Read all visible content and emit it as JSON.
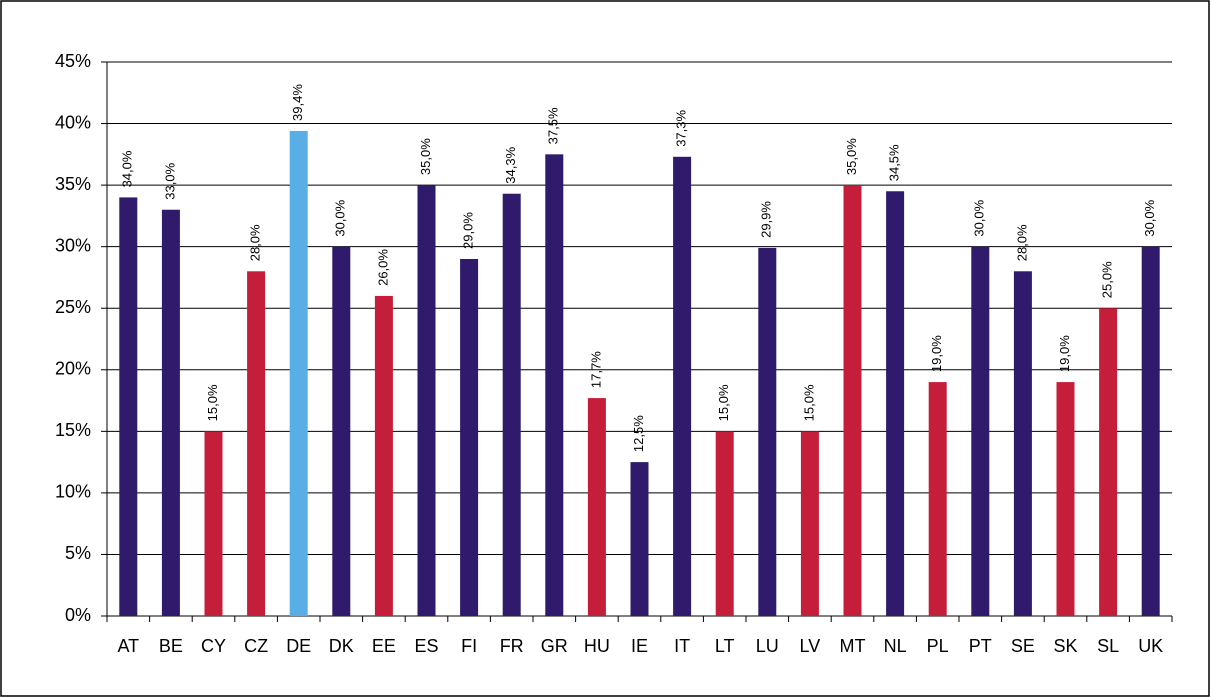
{
  "chart_data": {
    "type": "bar",
    "categories": [
      "AT",
      "BE",
      "CY",
      "CZ",
      "DE",
      "DK",
      "EE",
      "ES",
      "FI",
      "FR",
      "GR",
      "HU",
      "IE",
      "IT",
      "LT",
      "LU",
      "LV",
      "MT",
      "NL",
      "PL",
      "PT",
      "SE",
      "SK",
      "SL",
      "UK"
    ],
    "values": [
      34,
      33,
      15,
      28,
      39.4,
      30,
      26,
      35,
      29,
      34.3,
      37.5,
      17.7,
      12.5,
      37.3,
      15,
      29.9,
      15,
      35,
      34.5,
      19,
      30,
      28,
      19,
      25,
      30
    ],
    "value_labels": [
      "34,0%",
      "33,0%",
      "15,0%",
      "28,0%",
      "39,4%",
      "30,0%",
      "26,0%",
      "35,0%",
      "29,0%",
      "34,3%",
      "37,5%",
      "17,7%",
      "12,5%",
      "37,3%",
      "15,0%",
      "29,9%",
      "15,0%",
      "35,0%",
      "34,5%",
      "19,0%",
      "30,0%",
      "28,0%",
      "19,0%",
      "25,0%",
      "30,0%"
    ],
    "colors": [
      "#2f1a6b",
      "#2f1a6b",
      "#c41e3a",
      "#c41e3a",
      "#5aaee6",
      "#2f1a6b",
      "#c41e3a",
      "#2f1a6b",
      "#2f1a6b",
      "#2f1a6b",
      "#2f1a6b",
      "#c41e3a",
      "#2f1a6b",
      "#2f1a6b",
      "#c41e3a",
      "#2f1a6b",
      "#c41e3a",
      "#c41e3a",
      "#2f1a6b",
      "#c41e3a",
      "#2f1a6b",
      "#2f1a6b",
      "#c41e3a",
      "#c41e3a",
      "#2f1a6b"
    ],
    "ylim": [
      0,
      45
    ],
    "yticks": [
      {
        "value": 0,
        "label": "0%"
      },
      {
        "value": 5,
        "label": "5%"
      },
      {
        "value": 10,
        "label": "10%"
      },
      {
        "value": 15,
        "label": "15%"
      },
      {
        "value": 20,
        "label": "20%"
      },
      {
        "value": 25,
        "label": "25%"
      },
      {
        "value": 30,
        "label": "30%"
      },
      {
        "value": 35,
        "label": "35%"
      },
      {
        "value": 40,
        "label": "40%"
      },
      {
        "value": 45,
        "label": "45%"
      }
    ],
    "grid": true
  }
}
